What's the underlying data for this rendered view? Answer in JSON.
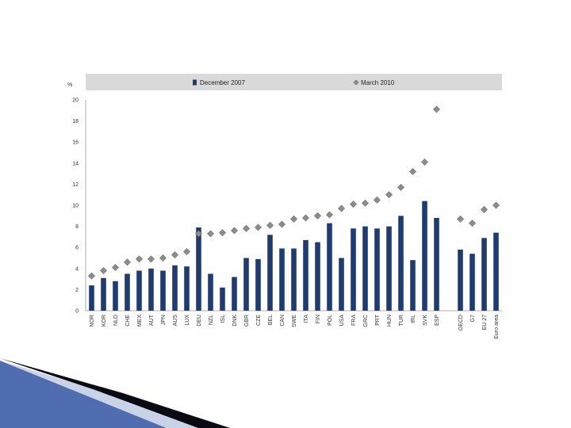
{
  "colors": {
    "bar": "#1f3b73",
    "marker": "#8c8c8c",
    "marker_stroke": "#555555",
    "legend_band": "#d9d9d9",
    "grid": "#cfcfcf",
    "plot_bg": "#ffffff",
    "corner_accent_dark": "#0a0a12",
    "corner_accent_blue": "#3a5aa0"
  },
  "chart_data": {
    "type": "bar",
    "title": "",
    "xlabel": "",
    "ylabel": "%",
    "ylim": [
      0,
      20
    ],
    "yticks": [
      0,
      2,
      4,
      6,
      8,
      10,
      12,
      14,
      16,
      18,
      20
    ],
    "grid": false,
    "legend_position": "top",
    "categories": [
      "NOR",
      "KOR",
      "NLD",
      "CHE",
      "MEX",
      "AUT",
      "JPN",
      "AUS",
      "LUX",
      "DEU",
      "NZL",
      "ISL",
      "DNK",
      "GBR",
      "CZE",
      "BEL",
      "CAN",
      "SWE",
      "ITA",
      "FIN",
      "POL",
      "USA",
      "FRA",
      "GRC",
      "PRT",
      "HUN",
      "TUR",
      "IRL",
      "SVK",
      "ESP",
      "",
      "OECD",
      "G7",
      "EU 27",
      "Euro area"
    ],
    "series": [
      {
        "name": "December 2007",
        "type": "bar",
        "values": [
          2.4,
          3.1,
          2.8,
          3.5,
          3.8,
          4.0,
          3.8,
          4.3,
          4.2,
          7.9,
          3.5,
          2.2,
          3.2,
          5.0,
          4.9,
          7.2,
          5.9,
          5.9,
          6.7,
          6.5,
          8.3,
          5.0,
          7.8,
          8.0,
          7.8,
          8.0,
          9.0,
          4.8,
          10.4,
          8.8,
          null,
          5.8,
          5.4,
          6.9,
          7.4
        ]
      },
      {
        "name": "March 2010",
        "type": "scatter",
        "values": [
          3.3,
          3.8,
          4.1,
          4.6,
          4.9,
          4.9,
          5.0,
          5.3,
          5.6,
          7.3,
          7.3,
          7.4,
          7.6,
          7.8,
          7.9,
          8.1,
          8.2,
          8.7,
          8.8,
          9.0,
          9.1,
          9.7,
          10.1,
          10.2,
          10.5,
          11.0,
          11.7,
          13.2,
          14.1,
          19.1,
          null,
          8.7,
          8.3,
          9.6,
          10.0
        ]
      }
    ]
  }
}
